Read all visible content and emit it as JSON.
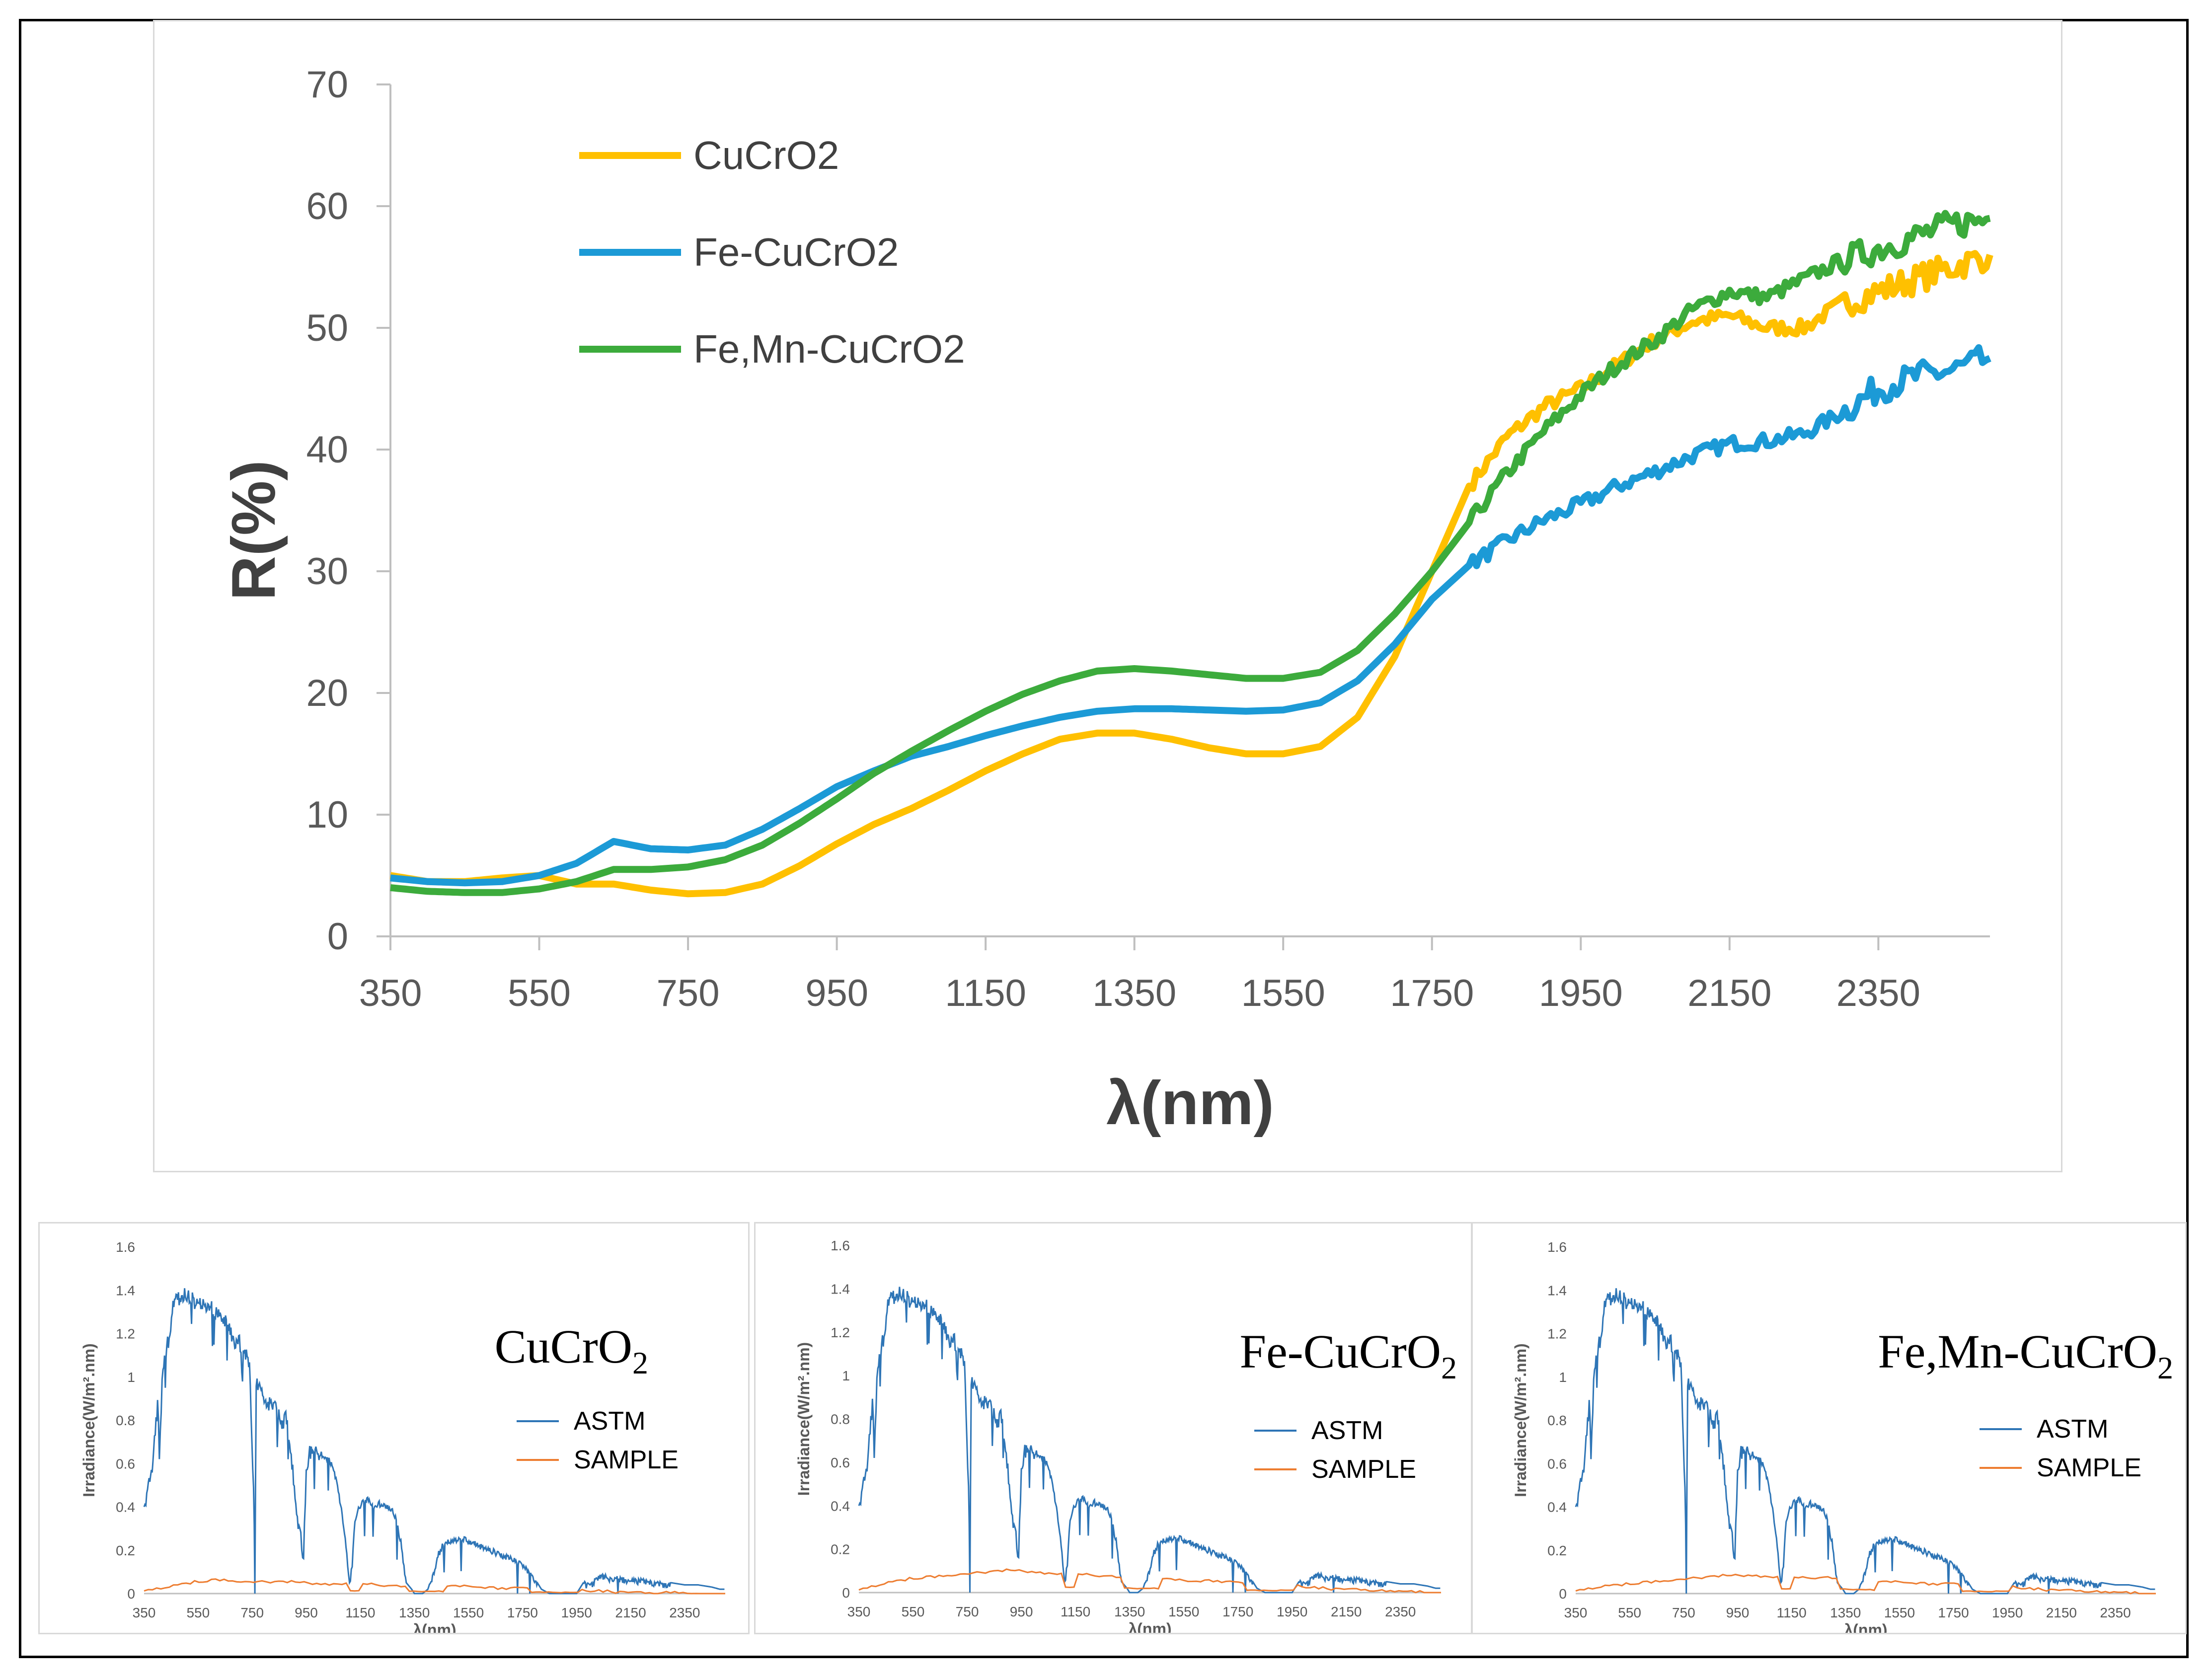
{
  "chart_data": [
    {
      "type": "line",
      "xlabel": "λ(nm)",
      "ylabel": "R(%)",
      "xlim": [
        350,
        2500
      ],
      "ylim": [
        0,
        70
      ],
      "xticks": [
        "350",
        "550",
        "750",
        "950",
        "1150",
        "1350",
        "1550",
        "1750",
        "1950",
        "2150",
        "2350"
      ],
      "yticks": [
        "0",
        "10",
        "20",
        "30",
        "40",
        "50",
        "60",
        "70"
      ],
      "legend_position": "top-left",
      "x": [
        350,
        400,
        450,
        500,
        550,
        600,
        650,
        700,
        750,
        800,
        850,
        900,
        950,
        1000,
        1050,
        1100,
        1150,
        1200,
        1250,
        1300,
        1350,
        1400,
        1450,
        1500,
        1550,
        1600,
        1650,
        1700,
        1750,
        1800,
        1850,
        1900,
        1950,
        2000,
        2050,
        2100,
        2150,
        2200,
        2250,
        2300,
        2350,
        2400,
        2450,
        2500
      ],
      "series": [
        {
          "name": "CuCrO2",
          "color": "#FFC000",
          "values": [
            5,
            4.5,
            4.5,
            4.8,
            5,
            4.3,
            4.3,
            3.8,
            3.5,
            3.6,
            4.3,
            5.8,
            7.6,
            9.2,
            10.5,
            12,
            13.6,
            15,
            16.2,
            16.7,
            16.7,
            16.2,
            15.5,
            15,
            15,
            15.6,
            18,
            23,
            30,
            37,
            41,
            43.5,
            45,
            47,
            49,
            50.5,
            51,
            50,
            50,
            52,
            53,
            54,
            55,
            56
          ]
        },
        {
          "name": "Fe-CuCrO2",
          "color": "#1C9AD6",
          "values": [
            4.8,
            4.5,
            4.4,
            4.5,
            5,
            6,
            7.8,
            7.2,
            7.1,
            7.5,
            8.8,
            10.5,
            12.3,
            13.6,
            14.8,
            15.6,
            16.5,
            17.3,
            18,
            18.5,
            18.7,
            18.7,
            18.6,
            18.5,
            18.6,
            19.2,
            21,
            24,
            27.7,
            30.5,
            32.5,
            34.2,
            35.5,
            37,
            38.2,
            39.5,
            40.5,
            40.7,
            41.3,
            43,
            45,
            46,
            46.5,
            47.5
          ]
        },
        {
          "name": "Fe,Mn-CuCrO2",
          "color": "#3CAB3C",
          "values": [
            4,
            3.7,
            3.6,
            3.6,
            3.9,
            4.5,
            5.5,
            5.5,
            5.7,
            6.3,
            7.5,
            9.3,
            11.3,
            13.4,
            15.2,
            16.9,
            18.5,
            19.9,
            21,
            21.8,
            22,
            21.8,
            21.5,
            21.2,
            21.2,
            21.7,
            23.5,
            26.5,
            30,
            34,
            38,
            41.5,
            44.5,
            47,
            49,
            51.5,
            53,
            52.5,
            54,
            55.5,
            56.5,
            57.5,
            58.5,
            59
          ]
        }
      ]
    },
    {
      "type": "line",
      "title": "CuCrO",
      "title_sub": "2",
      "xlabel": "λ(nm)",
      "ylabel": "Irradiance(W/m².nm)",
      "xlim": [
        350,
        2500
      ],
      "ylim": [
        0,
        1.6
      ],
      "xticks": [
        "350",
        "550",
        "750",
        "950",
        "1150",
        "1350",
        "1550",
        "1750",
        "1950",
        "2150",
        "2350"
      ],
      "yticks": [
        "0",
        "0.2",
        "0.4",
        "0.6",
        "0.8",
        "1",
        "1.2",
        "1.4",
        "1.6"
      ],
      "legend": [
        "ASTM",
        "SAMPLE"
      ],
      "legend_colors": [
        "#2E75B6",
        "#ED7D31"
      ],
      "sample_values": [
        0.02,
        0.04,
        0.06,
        0.07,
        0.06,
        0.06,
        0.06,
        0.05,
        0.05,
        0.05,
        0.04,
        0.04,
        0.04,
        0.04,
        0.03,
        0.03,
        0.03,
        0.02,
        0.02,
        0.01,
        0.01,
        0.01,
        0.0,
        0.0
      ]
    },
    {
      "type": "line",
      "title": "Fe-CuCrO",
      "title_sub": "2",
      "xlabel": "λ(nm)",
      "ylabel": "Irradiance(W/m².nm)",
      "xlim": [
        350,
        2500
      ],
      "ylim": [
        0,
        1.6
      ],
      "xticks": [
        "350",
        "550",
        "750",
        "950",
        "1150",
        "1350",
        "1550",
        "1750",
        "1950",
        "2150",
        "2350"
      ],
      "yticks": [
        "0",
        "0.2",
        "0.4",
        "0.6",
        "0.8",
        "1",
        "1.2",
        "1.4",
        "1.6"
      ],
      "legend": [
        "ASTM",
        "SAMPLE"
      ],
      "legend_colors": [
        "#2E75B6",
        "#ED7D31"
      ],
      "sample_values": [
        0.02,
        0.05,
        0.07,
        0.08,
        0.09,
        0.1,
        0.11,
        0.1,
        0.09,
        0.09,
        0.08,
        0.07,
        0.07,
        0.06,
        0.06,
        0.05,
        0.04,
        0.04,
        0.03,
        0.02,
        0.02,
        0.01,
        0.01,
        0.0
      ]
    },
    {
      "type": "line",
      "title": "Fe,Mn-CuCrO",
      "title_sub": "2",
      "xlabel": "λ(nm)",
      "ylabel": "Irradiance(W/m².nm)",
      "xlim": [
        350,
        2500
      ],
      "ylim": [
        0,
        1.6
      ],
      "xticks": [
        "350",
        "550",
        "750",
        "950",
        "1150",
        "1350",
        "1550",
        "1750",
        "1950",
        "2150",
        "2350"
      ],
      "yticks": [
        "0",
        "0.2",
        "0.4",
        "0.6",
        "0.8",
        "1",
        "1.2",
        "1.4",
        "1.6"
      ],
      "legend": [
        "ASTM",
        "SAMPLE"
      ],
      "legend_colors": [
        "#2E75B6",
        "#ED7D31"
      ],
      "sample_values": [
        0.02,
        0.04,
        0.05,
        0.06,
        0.07,
        0.08,
        0.09,
        0.09,
        0.08,
        0.08,
        0.08,
        0.07,
        0.06,
        0.06,
        0.05,
        0.05,
        0.04,
        0.04,
        0.03,
        0.02,
        0.02,
        0.01,
        0.01,
        0.0
      ]
    }
  ],
  "astm_spectrum": {
    "x": [
      350,
      360,
      380,
      400,
      410,
      420,
      440,
      460,
      480,
      500,
      520,
      540,
      560,
      580,
      600,
      620,
      640,
      660,
      680,
      700,
      720,
      740,
      755,
      760,
      765,
      780,
      800,
      820,
      840,
      860,
      880,
      900,
      920,
      930,
      940,
      950,
      960,
      980,
      1000,
      1020,
      1040,
      1060,
      1080,
      1100,
      1110,
      1120,
      1130,
      1140,
      1150,
      1160,
      1180,
      1200,
      1220,
      1240,
      1260,
      1280,
      1300,
      1320,
      1340,
      1350,
      1360,
      1380,
      1400,
      1420,
      1440,
      1450,
      1460,
      1480,
      1500,
      1520,
      1540,
      1560,
      1580,
      1600,
      1620,
      1640,
      1660,
      1680,
      1700,
      1720,
      1740,
      1760,
      1780,
      1800,
      1820,
      1850,
      1900,
      1950,
      1960,
      1980,
      2000,
      2020,
      2040,
      2060,
      2080,
      2100,
      2150,
      2200,
      2250,
      2300,
      2350,
      2400,
      2450,
      2480,
      2500
    ],
    "y": [
      0.4,
      0.5,
      0.6,
      0.9,
      0.8,
      1.1,
      1.2,
      1.38,
      1.4,
      1.42,
      1.4,
      1.38,
      1.37,
      1.36,
      1.35,
      1.33,
      1.31,
      1.28,
      1.2,
      1.2,
      1.15,
      1.1,
      0.5,
      0.15,
      1.0,
      1.0,
      0.9,
      0.92,
      0.88,
      0.82,
      0.85,
      0.6,
      0.35,
      0.3,
      0.2,
      0.6,
      0.68,
      0.7,
      0.66,
      0.65,
      0.62,
      0.55,
      0.4,
      0.2,
      0.05,
      0.15,
      0.35,
      0.4,
      0.42,
      0.44,
      0.45,
      0.42,
      0.43,
      0.42,
      0.41,
      0.37,
      0.25,
      0.05,
      0.02,
      0.0,
      0.0,
      0.0,
      0.02,
      0.1,
      0.2,
      0.22,
      0.25,
      0.25,
      0.26,
      0.27,
      0.26,
      0.25,
      0.24,
      0.23,
      0.22,
      0.21,
      0.2,
      0.19,
      0.18,
      0.17,
      0.15,
      0.13,
      0.1,
      0.06,
      0.02,
      0.0,
      0.0,
      0.0,
      0.02,
      0.06,
      0.04,
      0.08,
      0.09,
      0.09,
      0.08,
      0.08,
      0.07,
      0.07,
      0.06,
      0.05,
      0.04,
      0.04,
      0.03,
      0.02,
      0.02
    ]
  }
}
